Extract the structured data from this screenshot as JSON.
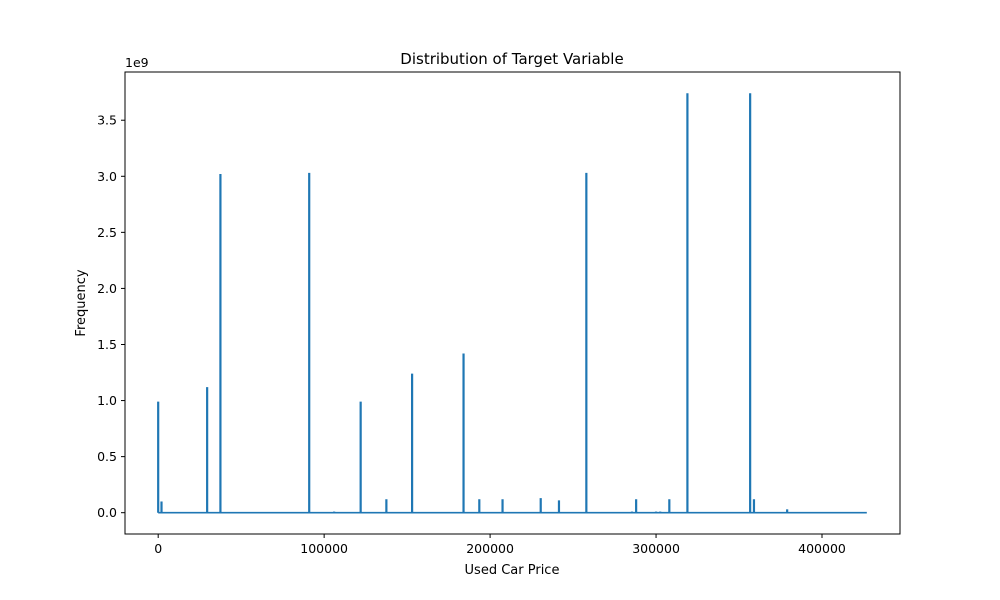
{
  "chart_data": {
    "type": "line",
    "title": "Distribution of Target Variable",
    "xlabel": "Used Car Price",
    "ylabel": "Frequency",
    "y_multiplier_label": "1e9",
    "xlim": [
      -20000,
      447000
    ],
    "ylim": [
      -0.19,
      3.93
    ],
    "xticks": [
      0,
      100000,
      200000,
      300000,
      400000
    ],
    "yticks": [
      0.0,
      0.5,
      1.0,
      1.5,
      2.0,
      2.5,
      3.0,
      3.5
    ],
    "ytick_labels": [
      "0.0",
      "0.5",
      "1.0",
      "1.5",
      "2.0",
      "2.5",
      "3.0",
      "3.5"
    ],
    "grid": false,
    "series_color": "#1f77b4",
    "x_range": [
      0,
      427000
    ],
    "spikes": [
      {
        "x": 0,
        "y": 0.99
      },
      {
        "x": 2000,
        "y": 0.1
      },
      {
        "x": 29500,
        "y": 1.12
      },
      {
        "x": 37500,
        "y": 3.02
      },
      {
        "x": 91000,
        "y": 3.03
      },
      {
        "x": 106000,
        "y": 0.01
      },
      {
        "x": 122000,
        "y": 0.99
      },
      {
        "x": 137500,
        "y": 0.12
      },
      {
        "x": 153000,
        "y": 1.24
      },
      {
        "x": 184000,
        "y": 1.42
      },
      {
        "x": 193500,
        "y": 0.12
      },
      {
        "x": 207500,
        "y": 0.12
      },
      {
        "x": 230500,
        "y": 0.13
      },
      {
        "x": 241500,
        "y": 0.11
      },
      {
        "x": 258000,
        "y": 3.03
      },
      {
        "x": 285500,
        "y": 0.01
      },
      {
        "x": 288000,
        "y": 0.12
      },
      {
        "x": 300000,
        "y": 0.01
      },
      {
        "x": 302500,
        "y": 0.01
      },
      {
        "x": 308000,
        "y": 0.12
      },
      {
        "x": 318900,
        "y": 3.74
      },
      {
        "x": 356700,
        "y": 3.74
      },
      {
        "x": 359000,
        "y": 0.12
      },
      {
        "x": 379000,
        "y": 0.03
      }
    ]
  }
}
